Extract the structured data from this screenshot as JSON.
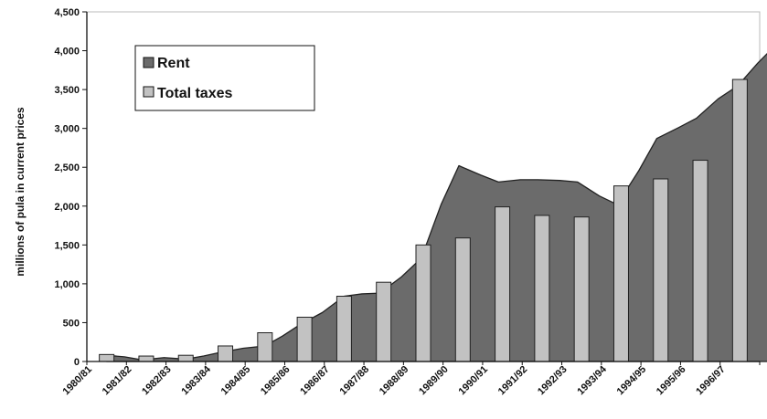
{
  "chart_data": {
    "type": "bar",
    "categories": [
      "1980/81",
      "1981/82",
      "1982/83",
      "1983/84",
      "1984/85",
      "1985/86",
      "1986/87",
      "1987/88",
      "1988/89",
      "1989/90",
      "1990/91",
      "1991/92",
      "1992/93",
      "1993/94",
      "1994/95",
      "1995/96",
      "1996/97"
    ],
    "ylabel": "millions of pula in current prices",
    "ylim": [
      0,
      4500
    ],
    "yticks": [
      0,
      500,
      1000,
      1500,
      2000,
      2500,
      3000,
      3500,
      4000,
      4500
    ],
    "ytick_labels": [
      "0",
      "500",
      "1,000",
      "1,500",
      "2,000",
      "2,500",
      "3,000",
      "3,500",
      "4,000",
      "4,500"
    ],
    "rent_area": {
      "name": "Rent",
      "x": [
        0,
        0.45,
        0.9,
        1.45,
        2,
        2.45,
        2.9,
        3.45,
        4,
        4.45,
        4.9,
        5.45,
        6,
        6.45,
        6.9,
        7.45,
        7.95,
        8.45,
        8.9,
        9.45,
        9.9,
        10.45,
        10.9,
        11.45,
        11.9,
        12.45,
        12.9,
        13.45,
        13.9,
        14.45,
        14.9,
        15.45,
        15.95,
        16.45,
        16.9
      ],
      "y": [
        80,
        60,
        20,
        50,
        30,
        70,
        120,
        170,
        200,
        330,
        480,
        630,
        840,
        870,
        880,
        1090,
        1330,
        2020,
        2520,
        2400,
        2310,
        2340,
        2340,
        2330,
        2310,
        2130,
        2020,
        2460,
        2870,
        3010,
        3130,
        3380,
        3550,
        3840,
        4070
      ]
    },
    "series": [
      {
        "name": "Total taxes",
        "values": [
          90,
          70,
          80,
          200,
          370,
          570,
          840,
          1020,
          1500,
          1590,
          1990,
          1880,
          1860,
          2260,
          2350,
          2590,
          3630
        ]
      }
    ],
    "legend": {
      "position": "top-left"
    },
    "colors": {
      "rent": "#6b6b6b",
      "taxes": "#c2c2c2",
      "outline": "#111111",
      "background": "#ffffff"
    }
  }
}
